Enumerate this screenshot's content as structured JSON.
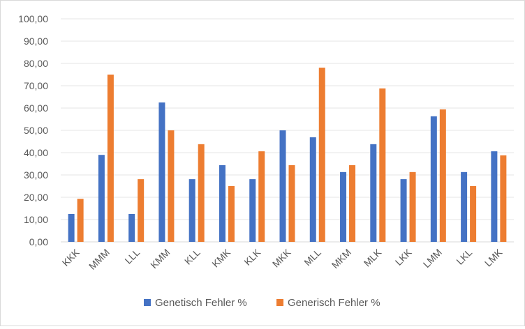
{
  "chart_data": {
    "type": "bar",
    "categories": [
      "KKK",
      "MMM",
      "LLL",
      "KMM",
      "KLL",
      "KMK",
      "KLK",
      "MKK",
      "MLL",
      "MKM",
      "MLK",
      "LKK",
      "LMM",
      "LKL",
      "LMK"
    ],
    "series": [
      {
        "name": "Genetisch Fehler %",
        "color": "#4472C4",
        "values": [
          12.5,
          39.0,
          12.5,
          62.5,
          28.1,
          34.4,
          28.1,
          50.0,
          46.9,
          31.3,
          43.8,
          28.1,
          56.3,
          31.3,
          40.6
        ]
      },
      {
        "name": "Generisch Fehler %",
        "color": "#ED7D31",
        "values": [
          19.3,
          75.0,
          28.1,
          50.0,
          43.8,
          25.0,
          40.6,
          34.4,
          78.1,
          34.4,
          68.8,
          31.3,
          59.4,
          25.0,
          38.8
        ]
      }
    ],
    "y_ticks": [
      "0,00",
      "10,00",
      "20,00",
      "30,00",
      "40,00",
      "50,00",
      "60,00",
      "70,00",
      "80,00",
      "90,00",
      "100,00"
    ],
    "ylim": [
      0,
      100
    ],
    "grid": true,
    "legend_position": "bottom",
    "title": "",
    "xlabel": "",
    "ylabel": ""
  }
}
